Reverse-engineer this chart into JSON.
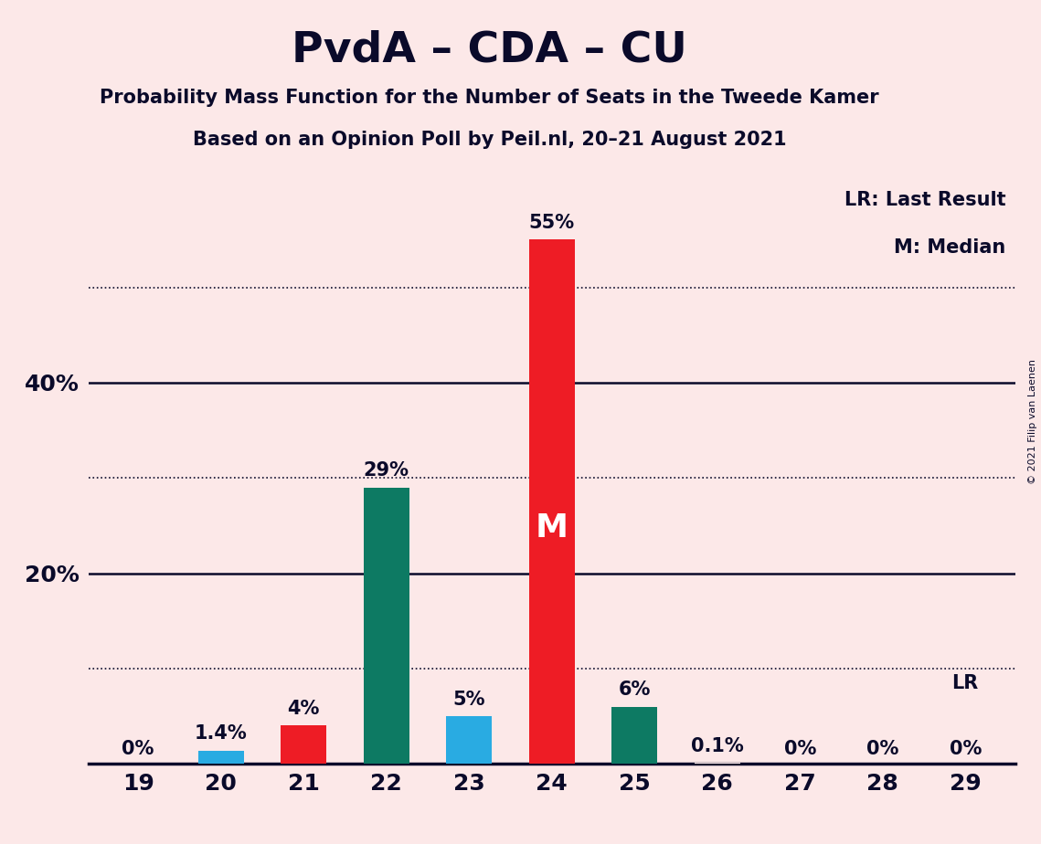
{
  "title": "PvdA – CDA – CU",
  "subtitle1": "Probability Mass Function for the Number of Seats in the Tweede Kamer",
  "subtitle2": "Based on an Opinion Poll by Peil.nl, 20–21 August 2021",
  "copyright": "© 2021 Filip van Laenen",
  "categories": [
    19,
    20,
    21,
    22,
    23,
    24,
    25,
    26,
    27,
    28,
    29
  ],
  "values": [
    0,
    1.4,
    4,
    29,
    5,
    55,
    6,
    0.1,
    0,
    0,
    0
  ],
  "bar_colors": [
    "#fce8e8",
    "#29abe2",
    "#ee1c25",
    "#0d7a63",
    "#29abe2",
    "#ee1c25",
    "#0d7a63",
    "#fce8e8",
    "#fce8e8",
    "#fce8e8",
    "#fce8e8"
  ],
  "label_texts": [
    "0%",
    "1.4%",
    "4%",
    "29%",
    "5%",
    "55%",
    "6%",
    "0.1%",
    "0%",
    "0%",
    "0%"
  ],
  "median_bar_index": 5,
  "lr_bar_index": 10,
  "ylim_max": 62,
  "background_color": "#fce8e8",
  "bar_width": 0.55,
  "legend_lr": "LR: Last Result",
  "legend_m": "M: Median",
  "lr_label": "LR",
  "dotted_gridlines": [
    10,
    30,
    50
  ],
  "solid_gridlines": [
    20,
    40
  ],
  "ytick_labeled": [
    20,
    40
  ],
  "text_color": "#0a0a2a"
}
